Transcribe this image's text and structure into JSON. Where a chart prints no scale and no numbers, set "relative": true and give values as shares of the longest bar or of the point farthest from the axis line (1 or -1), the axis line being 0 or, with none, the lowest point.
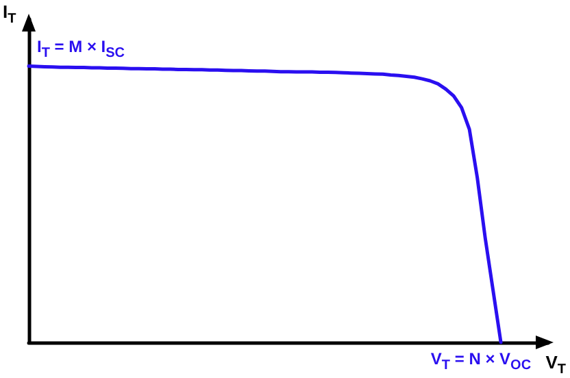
{
  "chart_data": {
    "type": "line",
    "relative": true,
    "xlabel": "V$_{T}$",
    "ylabel": "I$_{T}$",
    "marker": "none",
    "line_style": "solid",
    "categories": [
      null,
      null,
      null,
      null,
      null,
      null,
      null,
      null,
      null,
      null,
      null,
      null,
      null,
      null,
      null,
      null,
      null,
      null,
      null,
      null,
      null,
      null,
      null,
      null,
      null,
      null,
      null,
      null,
      null,
      null,
      null,
      null,
      null,
      null,
      null,
      null,
      null,
      null,
      null,
      null,
      null,
      null,
      null,
      null,
      null,
      null,
      null,
      null,
      null,
      null,
      null,
      null,
      null,
      null,
      null,
      null,
      null,
      null,
      null,
      null,
      null,
      null,
      null,
      null,
      null,
      null,
      null
    ],
    "series": [
      {
        "color": "#2a0ff0",
        "values": [
          1,
          0.999,
          0.998,
          0.997,
          0.996,
          0.996,
          0.995,
          0.995,
          0.994,
          0.994,
          0.993,
          0.993,
          0.992,
          0.991,
          0.991,
          0.99,
          0.99,
          0.989,
          0.989,
          0.988,
          0.988,
          0.987,
          0.987,
          0.986,
          0.986,
          0.985,
          0.984,
          0.984,
          0.983,
          0.982,
          0.982,
          0.981,
          0.98,
          0.98,
          0.979,
          0.979,
          0.979,
          0.978,
          0.978,
          0.977,
          0.976,
          0.975,
          0.974,
          0.973,
          0.972,
          0.971,
          0.968,
          0.966,
          0.963,
          0.96,
          0.954,
          0.947,
          0.936,
          0.917,
          0.892,
          0.85,
          0.771,
          0.597,
          0.38,
          0.19,
          0,
          null,
          null,
          null,
          null,
          null,
          null
        ]
      }
    ],
    "annotations": [
      "I$_{T}$ = M × I$_{SC}$",
      "V$_{T}$ = N × V$_{OC}$"
    ]
  }
}
